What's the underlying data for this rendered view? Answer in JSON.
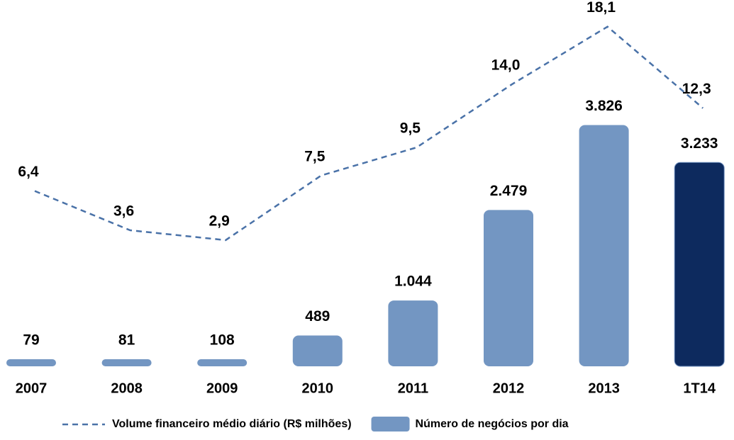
{
  "chart_data": {
    "type": "combo",
    "categories": [
      "2007",
      "2008",
      "2009",
      "2010",
      "2011",
      "2012",
      "2013",
      "1T14"
    ],
    "series": [
      {
        "name": "Volume financeiro médio diário (R$ milhões)",
        "type": "line",
        "axis": "y2",
        "color": "#4a72a8",
        "dashed": true,
        "values": [
          6.4,
          3.6,
          2.9,
          7.5,
          9.5,
          14.0,
          18.1,
          12.3
        ],
        "value_labels": [
          "6,4",
          "3,6",
          "2,9",
          "7,5",
          "9,5",
          "14,0",
          "18,1",
          "12,3"
        ]
      },
      {
        "name": "Número de negócios por dia",
        "type": "bar",
        "color": "#7396c2",
        "colors": [
          "#7396c2",
          "#7396c2",
          "#7396c2",
          "#7396c2",
          "#7396c2",
          "#7396c2",
          "#7396c2",
          "#0d2a5e"
        ],
        "values": [
          79,
          81,
          108,
          489,
          1044,
          2479,
          3826,
          3233
        ],
        "value_labels": [
          "79",
          "81",
          "108",
          "489",
          "1.044",
          "2.479",
          "3.826",
          "3.233"
        ]
      }
    ],
    "ylim": [
      0,
      4000
    ],
    "y2lim": [
      0,
      20
    ]
  }
}
